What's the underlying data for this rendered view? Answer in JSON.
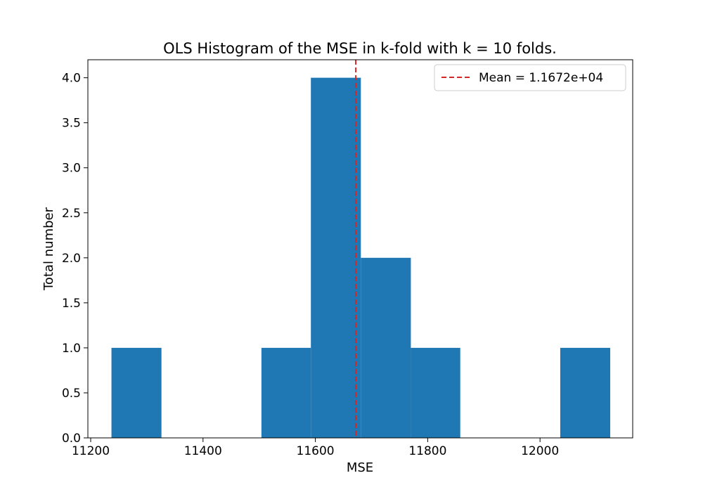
{
  "chart_data": {
    "type": "bar",
    "title": "OLS Histogram of the MSE in k-fold with k = 10 folds.",
    "xlabel": "MSE",
    "ylabel": "Total number",
    "xlim": [
      11195,
      12165
    ],
    "ylim": [
      0,
      4.2
    ],
    "bins": [
      {
        "x0": 11237,
        "x1": 11326,
        "count": 1
      },
      {
        "x0": 11326,
        "x1": 11415,
        "count": 0
      },
      {
        "x0": 11415,
        "x1": 11504,
        "count": 0
      },
      {
        "x0": 11504,
        "x1": 11592,
        "count": 1
      },
      {
        "x0": 11592,
        "x1": 11681,
        "count": 4
      },
      {
        "x0": 11681,
        "x1": 11770,
        "count": 2
      },
      {
        "x0": 11770,
        "x1": 11858,
        "count": 1
      },
      {
        "x0": 11858,
        "x1": 11947,
        "count": 0
      },
      {
        "x0": 11947,
        "x1": 12036,
        "count": 0
      },
      {
        "x0": 12036,
        "x1": 12125,
        "count": 1
      }
    ],
    "xticks": [
      11200,
      11400,
      11600,
      11800,
      12000
    ],
    "xtick_labels": [
      "11200",
      "11400",
      "11600",
      "11800",
      "12000"
    ],
    "yticks": [
      0,
      0.5,
      1,
      1.5,
      2,
      2.5,
      3,
      3.5,
      4
    ],
    "ytick_labels": [
      "0.0",
      "0.5",
      "1.0",
      "1.5",
      "2.0",
      "2.5",
      "3.0",
      "3.5",
      "4.0"
    ],
    "mean_line": {
      "value": 11672,
      "label": "Mean = 1.1672e+04",
      "color": "#d62728"
    },
    "bar_color": "#1f77b4",
    "grid": false,
    "legend_position": "top-right"
  }
}
